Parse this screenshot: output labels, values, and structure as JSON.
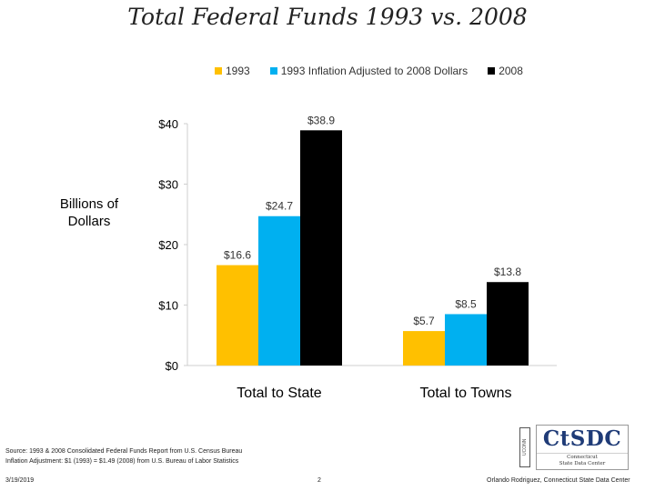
{
  "slide": {
    "title": "Total Federal Funds 1993 vs. 2008",
    "unit_label": "Billions of Dollars",
    "source_line": "Source: 1993 & 2008 Consolidated Federal Funds Report from U.S. Census Bureau",
    "inflation_line": "Inflation Adjustment: $1 (1993) = $1.49 (2008) from U.S. Bureau of Labor Statistics",
    "date": "3/19/2019",
    "page_number": "2",
    "credit": "Orlando Rodriguez, Connecticut State Data Center"
  },
  "logo": {
    "vertical_text": "UCONN",
    "name": "CtSDC",
    "subtitle_line1": "Connecticut",
    "subtitle_line2": "State Data Center"
  },
  "chart_data": {
    "type": "bar",
    "title": "Total Federal Funds 1993 vs. 2008",
    "xlabel": "",
    "ylabel": "Billions of Dollars",
    "categories": [
      "Total to State",
      "Total to Towns"
    ],
    "series": [
      {
        "name": "1993",
        "color": "#ffc000",
        "values": [
          16.6,
          5.7
        ]
      },
      {
        "name": "1993 Inflation Adjusted to 2008 Dollars",
        "color": "#00b0f0",
        "values": [
          24.7,
          8.5
        ]
      },
      {
        "name": "2008",
        "color": "#000000",
        "values": [
          38.9,
          13.8
        ]
      }
    ],
    "data_labels": [
      [
        "$16.6",
        "$5.7"
      ],
      [
        "$24.7",
        "$8.5"
      ],
      [
        "$38.9",
        "$13.8"
      ]
    ],
    "y_ticks": [
      0,
      10,
      20,
      30,
      40
    ],
    "y_tick_labels": [
      "$0",
      "$10",
      "$20",
      "$30",
      "$40"
    ],
    "ylim": [
      0,
      40
    ],
    "grid": false,
    "legend_position": "top"
  }
}
